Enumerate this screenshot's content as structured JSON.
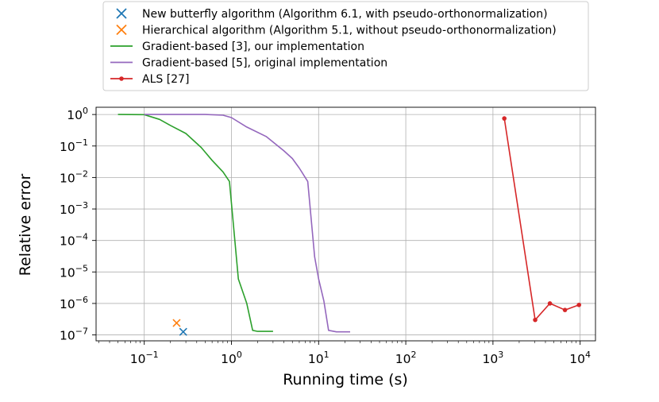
{
  "chart_data": {
    "type": "line",
    "xlabel": "Running time (s)",
    "ylabel": "Relative error",
    "xscale": "log",
    "yscale": "log",
    "xlim": [
      0.028,
      15000
    ],
    "ylim": [
      6.5e-08,
      1.7
    ],
    "grid": true,
    "legend_position": "top-center, above the axes",
    "x_ticks": [
      {
        "value": 0.1,
        "base": "10",
        "exp": "−1"
      },
      {
        "value": 1,
        "base": "10",
        "exp": "0"
      },
      {
        "value": 10,
        "base": "10",
        "exp": "1"
      },
      {
        "value": 100,
        "base": "10",
        "exp": "2"
      },
      {
        "value": 1000,
        "base": "10",
        "exp": "3"
      },
      {
        "value": 10000,
        "base": "10",
        "exp": "4"
      }
    ],
    "y_ticks": [
      {
        "value": 1,
        "base": "10",
        "exp": "0"
      },
      {
        "value": 0.1,
        "base": "10",
        "exp": "−1"
      },
      {
        "value": 0.01,
        "base": "10",
        "exp": "−2"
      },
      {
        "value": 0.001,
        "base": "10",
        "exp": "−3"
      },
      {
        "value": 0.0001,
        "base": "10",
        "exp": "−4"
      },
      {
        "value": 1e-05,
        "base": "10",
        "exp": "−5"
      },
      {
        "value": 1e-06,
        "base": "10",
        "exp": "−6"
      },
      {
        "value": 1e-07,
        "base": "10",
        "exp": "−7"
      }
    ],
    "series": [
      {
        "name": "New butterfly algorithm (Algorithm 6.1, with pseudo-orthonormalization)",
        "kind": "scatter",
        "marker": "x",
        "color": "#1f77b4",
        "points": [
          [
            0.28,
            1.25e-07
          ]
        ]
      },
      {
        "name": "Hierarchical algorithm (Algorithm 5.1, without pseudo-orthonormalization)",
        "kind": "scatter",
        "marker": "x",
        "color": "#ff7f0e",
        "points": [
          [
            0.235,
            2.4e-07
          ]
        ]
      },
      {
        "name": "Gradient-based [3], our implementation",
        "kind": "line",
        "marker": "none",
        "color": "#2ca02c",
        "points": [
          [
            0.05,
            1.0
          ],
          [
            0.1,
            0.99
          ],
          [
            0.15,
            0.7
          ],
          [
            0.2,
            0.45
          ],
          [
            0.3,
            0.25
          ],
          [
            0.45,
            0.09
          ],
          [
            0.6,
            0.035
          ],
          [
            0.8,
            0.015
          ],
          [
            0.95,
            0.0075
          ],
          [
            1.2,
            6e-06
          ],
          [
            1.5,
            1e-06
          ],
          [
            1.75,
            1.4e-07
          ],
          [
            2.0,
            1.3e-07
          ],
          [
            3.0,
            1.3e-07
          ]
        ]
      },
      {
        "name": "Gradient-based [5], original implementation",
        "kind": "line",
        "marker": "none",
        "color": "#9467bd",
        "points": [
          [
            0.1,
            1.0
          ],
          [
            0.5,
            1.0
          ],
          [
            0.8,
            0.95
          ],
          [
            1.0,
            0.8
          ],
          [
            1.5,
            0.4
          ],
          [
            2.5,
            0.2
          ],
          [
            4.0,
            0.07
          ],
          [
            5.0,
            0.04
          ],
          [
            6.0,
            0.02
          ],
          [
            7.5,
            0.0075
          ],
          [
            9.0,
            3e-05
          ],
          [
            10.0,
            6e-06
          ],
          [
            11.5,
            1.2e-06
          ],
          [
            13.0,
            1.4e-07
          ],
          [
            16.0,
            1.25e-07
          ],
          [
            23.0,
            1.25e-07
          ]
        ]
      },
      {
        "name": "ALS [27]",
        "kind": "line",
        "marker": "dot",
        "color": "#d62728",
        "points": [
          [
            1350,
            0.75
          ],
          [
            3050,
            3e-07
          ],
          [
            4500,
            1e-06
          ],
          [
            6700,
            6.2e-07
          ],
          [
            9700,
            9e-07
          ]
        ]
      }
    ]
  }
}
